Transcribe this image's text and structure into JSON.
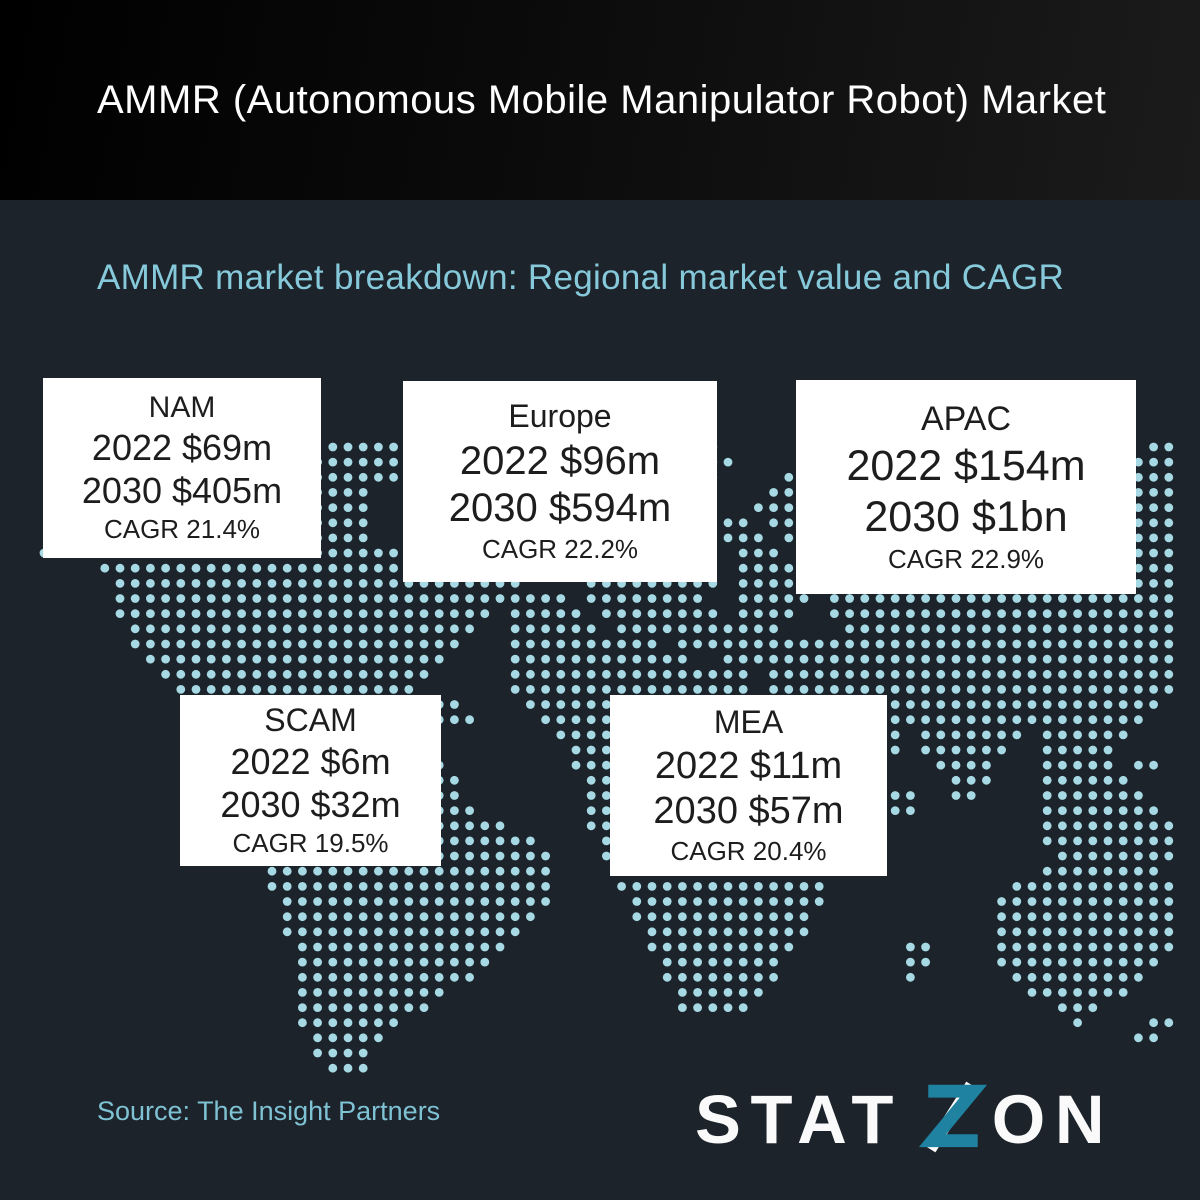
{
  "header": {
    "title": "AMMR (Autonomous Mobile Manipulator Robot) Market"
  },
  "subtitle": "AMMR market breakdown: Regional market value and CAGR",
  "regions": [
    {
      "name": "NAM",
      "v2022": "2022 $69m",
      "v2030": "2030 $405m",
      "cagr": "CAGR 21.4%"
    },
    {
      "name": "Europe",
      "v2022": "2022 $96m",
      "v2030": "2030 $594m",
      "cagr": "CAGR 22.2%"
    },
    {
      "name": "APAC",
      "v2022": "2022 $154m",
      "v2030": "2030 $1bn",
      "cagr": "CAGR 22.9%"
    },
    {
      "name": "SCAM",
      "v2022": "2022 $6m",
      "v2030": "2030 $32m",
      "cagr": "CAGR 19.5%"
    },
    {
      "name": "MEA",
      "v2022": "2022 $11m",
      "v2030": "2030 $57m",
      "cagr": "CAGR 20.4%"
    }
  ],
  "source": "Source: The Insight Partners",
  "logo": {
    "left": "STAT",
    "z_letter": "Z",
    "right": "ON"
  },
  "colors": {
    "page_background": "#1c232a",
    "header_background_left": "#000000",
    "header_background_right": "#1b1b1b",
    "map_dots": "#a7d9e4",
    "subtitle_text": "#86c9da",
    "source_text": "#7ec2d4",
    "card_background": "#ffffff",
    "card_text": "#1d1d1d",
    "logo_white": "#fafafa",
    "logo_teal": "#1f82a1"
  },
  "chart_data": {
    "type": "table",
    "title": "AMMR market breakdown: Regional market value and CAGR",
    "categories": [
      "NAM",
      "Europe",
      "APAC",
      "SCAM",
      "MEA"
    ],
    "series": [
      {
        "name": "2022 market value ($m)",
        "values": [
          69,
          96,
          154,
          6,
          11
        ]
      },
      {
        "name": "2030 market value ($m)",
        "values": [
          405,
          594,
          1000,
          32,
          57
        ]
      },
      {
        "name": "CAGR (%)",
        "values": [
          21.4,
          22.2,
          22.9,
          19.5,
          20.4
        ]
      }
    ],
    "layout": "values shown in five white cards overlaid on a dotted world map; dark background"
  }
}
